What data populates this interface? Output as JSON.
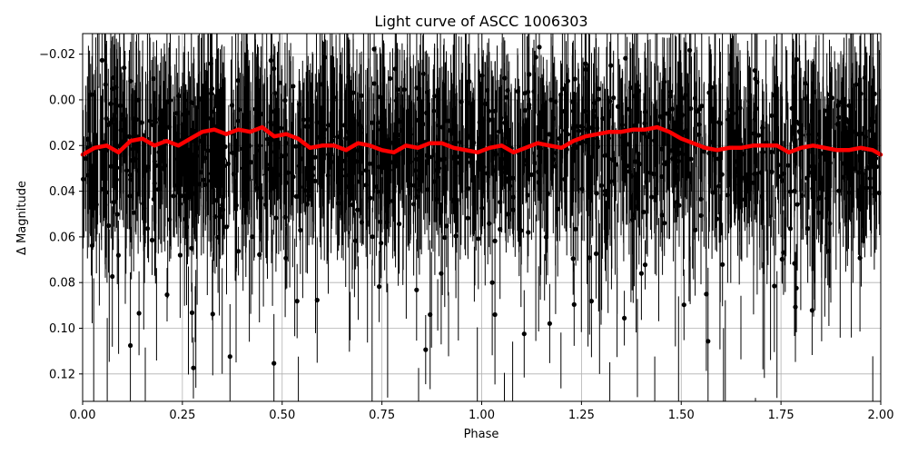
{
  "chart_data": {
    "type": "scatter",
    "title": "Light curve of ASCC 1006303",
    "xlabel": "Phase",
    "ylabel": "Δ Magnitude",
    "xlim": [
      0.0,
      2.0
    ],
    "ylim": [
      0.132,
      -0.029
    ],
    "y_inverted": true,
    "grid": true,
    "x_ticks": [
      0.0,
      0.25,
      0.5,
      0.75,
      1.0,
      1.25,
      1.5,
      1.75,
      2.0
    ],
    "x_tick_labels": [
      "0.00",
      "0.25",
      "0.50",
      "0.75",
      "1.00",
      "1.25",
      "1.50",
      "1.75",
      "2.00"
    ],
    "y_ticks": [
      -0.02,
      0.0,
      0.02,
      0.04,
      0.06,
      0.08,
      0.1,
      0.12
    ],
    "y_tick_labels": [
      "−0.02",
      "0.00",
      "0.02",
      "0.04",
      "0.06",
      "0.08",
      "0.10",
      "0.12"
    ],
    "series": [
      {
        "kind": "errorbar-points",
        "color": "#000000",
        "description": "dense noisy photometry points with large error bars, centred near 0.02 mag, scatter roughly ±0.05 mag",
        "center": 0.02,
        "spread": 0.03,
        "yerr": 0.02
      },
      {
        "kind": "line",
        "color": "#ff0000",
        "x": [
          0.0,
          0.03,
          0.06,
          0.09,
          0.12,
          0.15,
          0.18,
          0.21,
          0.24,
          0.27,
          0.3,
          0.33,
          0.36,
          0.39,
          0.42,
          0.45,
          0.48,
          0.51,
          0.54,
          0.57,
          0.6,
          0.63,
          0.66,
          0.69,
          0.72,
          0.75,
          0.78,
          0.81,
          0.84,
          0.87,
          0.9,
          0.93,
          0.96,
          0.99,
          1.02,
          1.05,
          1.08,
          1.11,
          1.14,
          1.17,
          1.2,
          1.23,
          1.26,
          1.29,
          1.32,
          1.35,
          1.38,
          1.41,
          1.44,
          1.47,
          1.5,
          1.53,
          1.56,
          1.59,
          1.62,
          1.65,
          1.68,
          1.71,
          1.74,
          1.77,
          1.8,
          1.83,
          1.86,
          1.89,
          1.92,
          1.95,
          1.98,
          2.0
        ],
        "y": [
          0.024,
          0.021,
          0.02,
          0.023,
          0.018,
          0.017,
          0.02,
          0.018,
          0.02,
          0.017,
          0.014,
          0.013,
          0.015,
          0.013,
          0.014,
          0.012,
          0.016,
          0.015,
          0.017,
          0.021,
          0.02,
          0.02,
          0.022,
          0.019,
          0.02,
          0.022,
          0.023,
          0.02,
          0.021,
          0.019,
          0.019,
          0.021,
          0.022,
          0.023,
          0.021,
          0.02,
          0.023,
          0.021,
          0.019,
          0.02,
          0.021,
          0.018,
          0.016,
          0.015,
          0.014,
          0.014,
          0.013,
          0.013,
          0.012,
          0.014,
          0.017,
          0.019,
          0.021,
          0.022,
          0.021,
          0.021,
          0.02,
          0.02,
          0.02,
          0.023,
          0.021,
          0.02,
          0.021,
          0.022,
          0.022,
          0.021,
          0.022,
          0.024
        ]
      }
    ]
  }
}
